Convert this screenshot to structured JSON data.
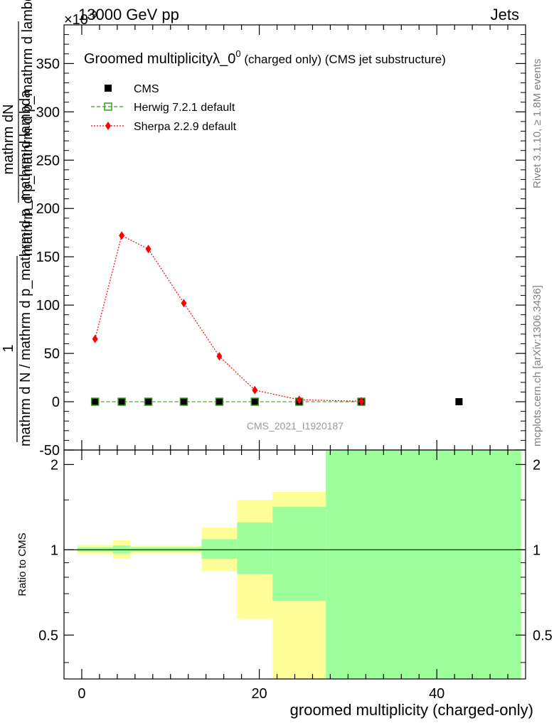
{
  "header": {
    "left": "13000 GeV pp",
    "right": "Jets",
    "exponent_label": "×10",
    "exponent_sup": "-9"
  },
  "side_labels": {
    "rivet": "Rivet 3.1.10, ≥ 1.8M events",
    "mcplots": "mcplots.cern.ch [arXiv:1306.3436]"
  },
  "watermark": "CMS_2021_I1920187",
  "colors": {
    "cms": "#000000",
    "herwig": "#3a9a1a",
    "sherpa": "#ff0000",
    "band_inner": "#9cff9c",
    "band_outer": "#ffff99"
  },
  "chart_data": [
    {
      "type": "line",
      "title": "Groomed multiplicity",
      "title_symbol": "λ_0",
      "title_sup": "0",
      "title_suffix": " (charged only) (CMS jet substructure)",
      "ylabel_numerator": "mathrm dN",
      "ylabel_denominator": "mathrm d p_mathrm d p_mathrm d lambda",
      "ylabel_prefix": "1",
      "ylabel_prefix_denominator": "mathrm d N / mathrm d p_mathrm d p_mathrm d lambda",
      "xlim": [
        -2,
        50
      ],
      "ylim": [
        -50,
        390
      ],
      "yticks": [
        -50,
        0,
        50,
        100,
        150,
        200,
        250,
        300,
        350
      ],
      "series": [
        {
          "name": "CMS",
          "marker": "square-filled",
          "x": [
            1.5,
            4.5,
            7.5,
            11.5,
            15.5,
            19.5,
            24.5,
            31.5,
            42.5
          ],
          "y": [
            0,
            0,
            0,
            0,
            0,
            0,
            0,
            0,
            0
          ]
        },
        {
          "name": "Herwig 7.2.1 default",
          "marker": "square-open",
          "line": "dashed",
          "x": [
            1.5,
            4.5,
            7.5,
            11.5,
            15.5,
            19.5,
            24.5,
            31.5
          ],
          "y": [
            0,
            0,
            0,
            0,
            0,
            0,
            0,
            0
          ]
        },
        {
          "name": "Sherpa 2.2.9 default",
          "marker": "diamond",
          "line": "dotted",
          "x": [
            1.5,
            4.5,
            7.5,
            11.5,
            15.5,
            19.5,
            24.5,
            31.5
          ],
          "y": [
            65,
            172,
            158,
            102,
            47,
            12,
            2,
            0.5
          ]
        }
      ],
      "legend_placement": "top-left"
    },
    {
      "type": "area",
      "ylabel": "Ratio to CMS",
      "xlabel": "groomed multiplicity (charged-only)",
      "xlim": [
        -2,
        50
      ],
      "ylim": [
        0.35,
        2.25
      ],
      "xticks": [
        0,
        20,
        40
      ],
      "yticks": [
        0.5,
        1,
        2
      ],
      "ytick_labels": [
        "0.5",
        "1",
        "2"
      ],
      "bins": [
        {
          "x0": -0.5,
          "x1": 3.5,
          "inner": [
            0.985,
            1.02
          ],
          "outer": [
            0.965,
            1.04
          ]
        },
        {
          "x0": 3.5,
          "x1": 5.5,
          "inner": [
            0.97,
            1.035
          ],
          "outer": [
            0.93,
            1.08
          ]
        },
        {
          "x0": 5.5,
          "x1": 13.5,
          "inner": [
            0.985,
            1.02
          ],
          "outer": [
            0.97,
            1.035
          ]
        },
        {
          "x0": 13.5,
          "x1": 17.5,
          "inner": [
            0.93,
            1.09
          ],
          "outer": [
            0.84,
            1.2
          ]
        },
        {
          "x0": 17.5,
          "x1": 21.5,
          "inner": [
            0.82,
            1.25
          ],
          "outer": [
            0.57,
            1.5
          ]
        },
        {
          "x0": 21.5,
          "x1": 27.5,
          "inner": [
            0.66,
            1.42
          ],
          "outer": [
            0.35,
            1.6
          ]
        },
        {
          "x0": 27.5,
          "x1": 49.5,
          "inner": [
            0.35,
            2.25
          ],
          "outer": [
            0.35,
            2.25
          ]
        }
      ],
      "reference_line": 1
    }
  ]
}
